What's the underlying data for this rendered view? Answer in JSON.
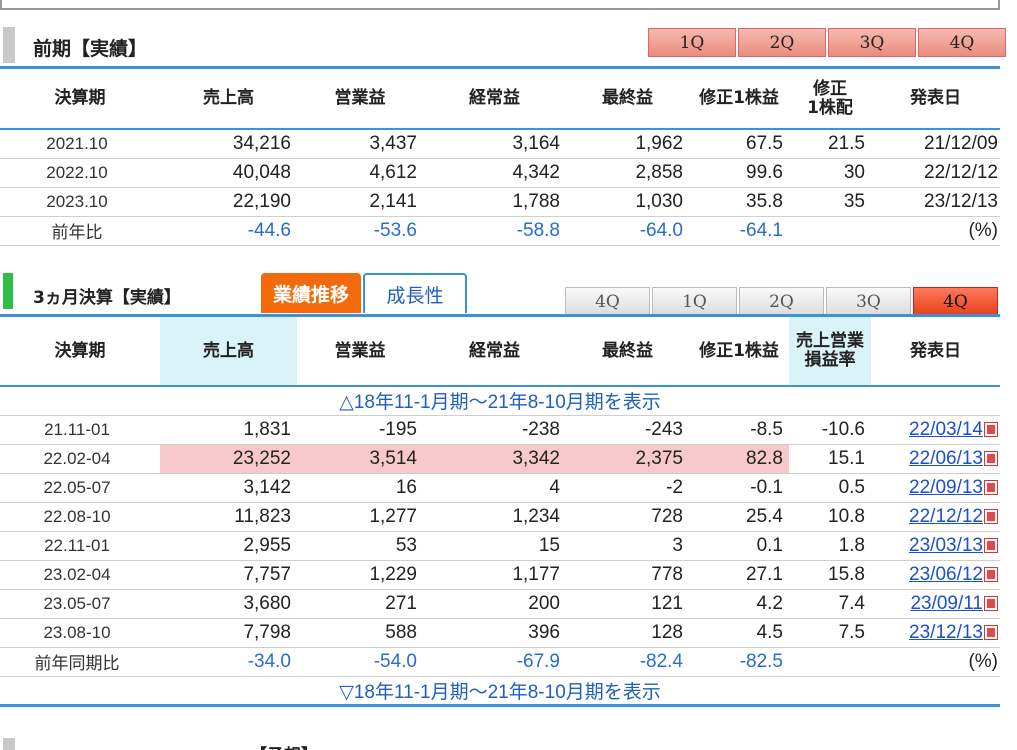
{
  "annual": {
    "title": "前期【実績】",
    "quarter_tabs": [
      "1Q",
      "2Q",
      "3Q",
      "4Q"
    ],
    "headers": [
      "決算期",
      "売上高",
      "営業益",
      "経常益",
      "最終益",
      "修正1株益",
      "修正",
      "1株配",
      "発表日"
    ],
    "rows": [
      {
        "period": "2021.10",
        "sales": "34,216",
        "op": "3,437",
        "ord": "3,164",
        "net": "1,962",
        "eps": "67.5",
        "div": "21.5",
        "date": "21/12/09"
      },
      {
        "period": "2022.10",
        "sales": "40,048",
        "op": "4,612",
        "ord": "4,342",
        "net": "2,858",
        "eps": "99.6",
        "div": "30",
        "date": "22/12/12"
      },
      {
        "period": "2023.10",
        "sales": "22,190",
        "op": "2,141",
        "ord": "1,788",
        "net": "1,030",
        "eps": "35.8",
        "div": "35",
        "date": "23/12/13"
      }
    ],
    "yoy": {
      "label": "前年比",
      "sales": "-44.6",
      "op": "-53.6",
      "ord": "-58.8",
      "net": "-64.0",
      "eps": "-64.1",
      "unit": "(%)"
    }
  },
  "quarterly": {
    "title": "3ヵ月決算【実績】",
    "tab_performance": "業績推移",
    "tab_growth": "成長性",
    "quarter_tabs": [
      "4Q",
      "1Q",
      "2Q",
      "3Q",
      "4Q"
    ],
    "headers": [
      "決算期",
      "売上高",
      "営業益",
      "経常益",
      "最終益",
      "修正1株益",
      "売上営業",
      "損益率",
      "発表日"
    ],
    "show_prev": "△18年11-1月期～21年8-10月期を表示",
    "rows": [
      {
        "period": "21.11-01",
        "sales": "1,831",
        "op": "-195",
        "ord": "-238",
        "net": "-243",
        "eps": "-8.5",
        "margin": "-10.6",
        "date": "22/03/14"
      },
      {
        "period": "22.02-04",
        "sales": "23,252",
        "op": "3,514",
        "ord": "3,342",
        "net": "2,375",
        "eps": "82.8",
        "margin": "15.1",
        "date": "22/06/13"
      },
      {
        "period": "22.05-07",
        "sales": "3,142",
        "op": "16",
        "ord": "4",
        "net": "-2",
        "eps": "-0.1",
        "margin": "0.5",
        "date": "22/09/13"
      },
      {
        "period": "22.08-10",
        "sales": "11,823",
        "op": "1,277",
        "ord": "1,234",
        "net": "728",
        "eps": "25.4",
        "margin": "10.8",
        "date": "22/12/12"
      },
      {
        "period": "22.11-01",
        "sales": "2,955",
        "op": "53",
        "ord": "15",
        "net": "3",
        "eps": "0.1",
        "margin": "1.8",
        "date": "23/03/13"
      },
      {
        "period": "23.02-04",
        "sales": "7,757",
        "op": "1,229",
        "ord": "1,177",
        "net": "778",
        "eps": "27.1",
        "margin": "15.8",
        "date": "23/06/12"
      },
      {
        "period": "23.05-07",
        "sales": "3,680",
        "op": "271",
        "ord": "200",
        "net": "121",
        "eps": "4.2",
        "margin": "7.4",
        "date": "23/09/11"
      },
      {
        "period": "23.08-10",
        "sales": "7,798",
        "op": "588",
        "ord": "396",
        "net": "128",
        "eps": "4.5",
        "margin": "7.5",
        "date": "23/12/13"
      }
    ],
    "yoy": {
      "label": "前年同期比",
      "sales": "-34.0",
      "op": "-54.0",
      "ord": "-67.9",
      "net": "-82.4",
      "eps": "-82.5",
      "unit": "(%)"
    },
    "show_next": "▽18年11-1月期～21年8-10月期を表示"
  },
  "next_section": {
    "title": "【予想】"
  },
  "colors": {
    "accent_blue": "#3a93d8",
    "pink_highlight": "#f8c9cc",
    "cyan_header": "#d9f3f7",
    "tab_orange": "#f26a0c",
    "green_bar": "#2fbf47"
  }
}
